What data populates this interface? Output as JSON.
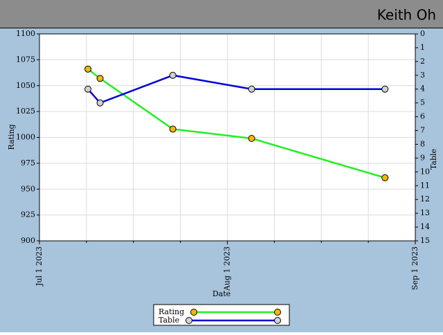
{
  "header": {
    "title": "Keith Oh"
  },
  "chart_data": {
    "type": "line",
    "x_label": "Date",
    "y_label": "Rating",
    "y2_label": "Table",
    "x": [
      "2023-07-09",
      "2023-07-11",
      "2023-07-23",
      "2023-08-05",
      "2023-08-27"
    ],
    "xlim": [
      "2023-07-01",
      "2023-09-01"
    ],
    "xticks": [
      {
        "value": "2023-07-01",
        "label": "Jul 1 2023"
      },
      {
        "value": "2023-08-01",
        "label": "Aug 1 2023"
      },
      {
        "value": "2023-09-01",
        "label": "Sep 1 2023"
      }
    ],
    "ylim": [
      900,
      1100
    ],
    "yticks": [
      900,
      925,
      950,
      975,
      1000,
      1025,
      1050,
      1075,
      1100
    ],
    "y2lim": [
      15,
      0
    ],
    "y2ticks": [
      0,
      1,
      2,
      3,
      4,
      5,
      6,
      7,
      8,
      9,
      10,
      11,
      12,
      13,
      14,
      15
    ],
    "grid": true,
    "legend": "bottom",
    "series": [
      {
        "name": "Rating",
        "color": "#22ee22",
        "marker_color": "#f5b800",
        "values": [
          1066,
          1057,
          1008,
          999,
          961
        ]
      },
      {
        "name": "Table",
        "color": "#0000dd",
        "marker_color": "#d0d0d8",
        "axis": "y2",
        "values": [
          4,
          5,
          3,
          4,
          4
        ]
      }
    ]
  }
}
